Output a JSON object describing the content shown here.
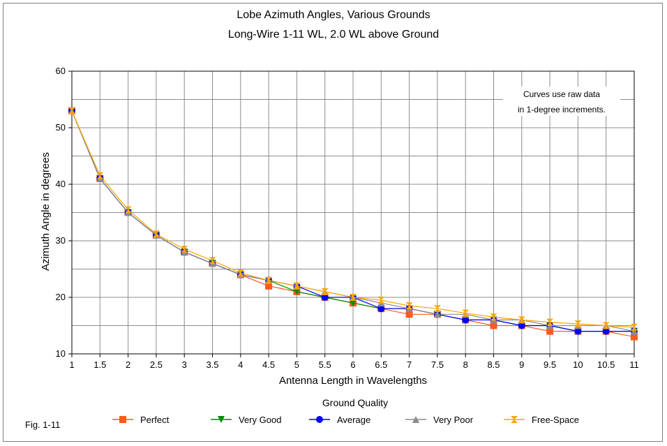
{
  "figure_label": "Fig. 1-11",
  "chart_data": {
    "type": "line",
    "title": "Lobe Azimuth Angles, Various Grounds",
    "subtitle": "Long-Wire 1-11 WL, 2.0 WL above Ground",
    "xlabel": "Antenna Length in Wavelengths",
    "ylabel": "Azimuth Angle in degrees",
    "x": [
      1,
      1.5,
      2,
      2.5,
      3,
      3.5,
      4,
      4.5,
      5,
      5.5,
      6,
      6.5,
      7,
      7.5,
      8,
      8.5,
      9,
      9.5,
      10,
      10.5,
      11
    ],
    "xticks": [
      "1",
      "1.5",
      "2",
      "2.5",
      "3",
      "3.5",
      "4",
      "4.5",
      "5",
      "5.5",
      "6",
      "6.5",
      "7",
      "7.5",
      "8",
      "8.5",
      "9",
      "9.5",
      "10",
      "10.5",
      "11"
    ],
    "xlim": [
      1,
      11
    ],
    "ylim": [
      10,
      60
    ],
    "yticks": [
      10,
      20,
      30,
      40,
      50,
      60
    ],
    "minor_grid_step": 5,
    "grid": true,
    "legend_title": "Ground Quality",
    "legend_position": "bottom",
    "annotation": [
      "Curves use raw data",
      "in 1-degree increments."
    ],
    "series": [
      {
        "name": "Perfect",
        "color": "#ff5a1f",
        "marker": "square",
        "values": [
          53,
          41,
          35,
          31,
          28,
          26,
          24,
          22,
          21,
          20,
          19,
          18,
          17,
          17,
          16,
          15,
          15,
          14,
          14,
          14,
          13
        ]
      },
      {
        "name": "Very Good",
        "color": "#008c00",
        "marker": "triangle-down",
        "values": [
          53,
          41,
          35,
          31,
          28,
          26,
          24,
          23,
          21,
          20,
          19,
          18,
          18,
          17,
          16,
          16,
          15,
          15,
          14,
          14,
          14
        ]
      },
      {
        "name": "Average",
        "color": "#0000ff",
        "marker": "circle",
        "values": [
          53,
          41,
          35,
          31,
          28,
          26,
          24,
          23,
          22,
          20,
          20,
          18,
          18,
          17,
          16,
          16,
          15,
          15,
          14,
          14,
          14
        ]
      },
      {
        "name": "Very Poor",
        "color": "#8c8c8c",
        "marker": "triangle-up",
        "values": [
          53,
          41,
          35,
          31,
          28,
          26,
          24,
          23,
          22,
          21,
          20,
          19,
          18,
          17,
          17,
          16,
          16,
          15,
          15,
          15,
          14
        ]
      },
      {
        "name": "Free-Space",
        "color": "#ffa500",
        "marker": "hourglass",
        "values": [
          53,
          41.5,
          35.5,
          31.2,
          28.5,
          26.5,
          24.3,
          23,
          22,
          21,
          20,
          19.5,
          18.5,
          18,
          17.2,
          16.5,
          16,
          15.6,
          15.3,
          15,
          14.7
        ]
      }
    ]
  }
}
